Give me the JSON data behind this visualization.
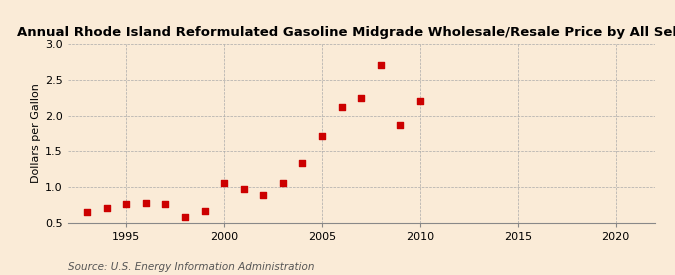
{
  "title": "Annual Rhode Island Reformulated Gasoline Midgrade Wholesale/Resale Price by All Sellers",
  "ylabel": "Dollars per Gallon",
  "source": "Source: U.S. Energy Information Administration",
  "background_color": "#faebd7",
  "marker_color": "#cc0000",
  "years": [
    1993,
    1994,
    1995,
    1996,
    1997,
    1998,
    1999,
    2000,
    2001,
    2002,
    2003,
    2004,
    2005,
    2006,
    2007,
    2008,
    2009,
    2010
  ],
  "values": [
    0.65,
    0.7,
    0.76,
    0.78,
    0.76,
    0.58,
    0.66,
    1.05,
    0.97,
    0.89,
    1.06,
    1.34,
    1.71,
    2.12,
    2.25,
    2.7,
    1.87,
    2.2
  ],
  "xlim": [
    1992,
    2022
  ],
  "ylim": [
    0.5,
    3.0
  ],
  "xticks": [
    1995,
    2000,
    2005,
    2010,
    2015,
    2020
  ],
  "yticks": [
    0.5,
    1.0,
    1.5,
    2.0,
    2.5,
    3.0
  ],
  "title_fontsize": 9.5,
  "label_fontsize": 8.0,
  "tick_fontsize": 8.0,
  "source_fontsize": 7.5
}
